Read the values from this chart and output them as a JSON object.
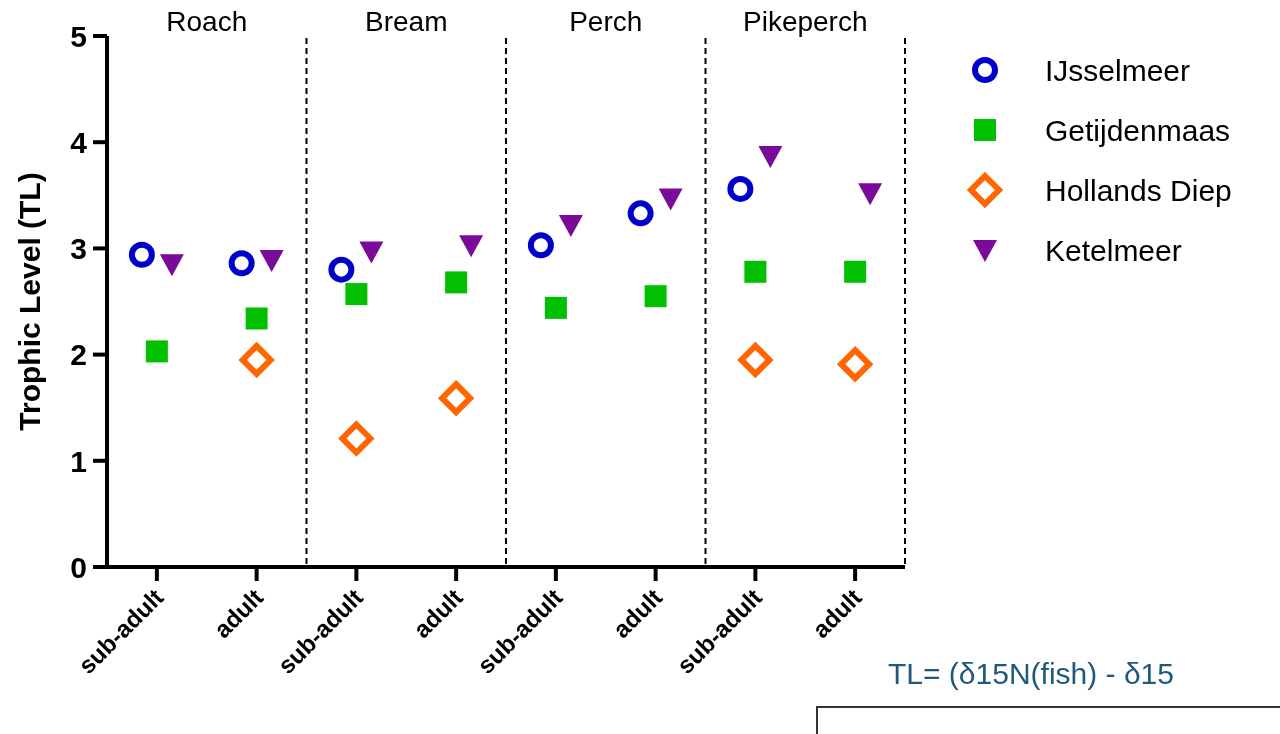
{
  "chart_data": {
    "type": "scatter",
    "ylabel": "Trophic Level (TL)",
    "categories": [
      "sub-adult",
      "adult",
      "sub-adult",
      "adult",
      "sub-adult",
      "adult",
      "sub-adult",
      "adult"
    ],
    "ylim": [
      0,
      5
    ],
    "yticks": [
      0,
      1,
      2,
      3,
      4,
      5
    ],
    "grid": false,
    "legend": "top right",
    "annotations": [
      "Roach",
      "Bream",
      "Perch",
      "Pikeperch",
      "TL= (δ15N(fish) - δ15"
    ],
    "series": [
      {
        "name": "IJsselmeer",
        "color": "#0000cc",
        "marker": "circle",
        "values": [
          2.94,
          2.86,
          2.8,
          null,
          3.03,
          3.33,
          3.56,
          null
        ]
      },
      {
        "name": "Getijdenmaas",
        "color": "#00c000",
        "marker": "square",
        "values": [
          2.03,
          2.34,
          2.57,
          2.68,
          2.44,
          2.55,
          2.78,
          2.78
        ]
      },
      {
        "name": "Hollands Diep",
        "color": "#ff6600",
        "marker": "diamond",
        "values": [
          null,
          1.95,
          1.21,
          1.59,
          null,
          null,
          1.95,
          1.91
        ]
      },
      {
        "name": "Ketelmeer",
        "color": "#7a0a9a",
        "marker": "triangle",
        "values": [
          2.85,
          2.89,
          2.97,
          3.03,
          3.22,
          3.47,
          3.87,
          3.52
        ]
      }
    ]
  }
}
